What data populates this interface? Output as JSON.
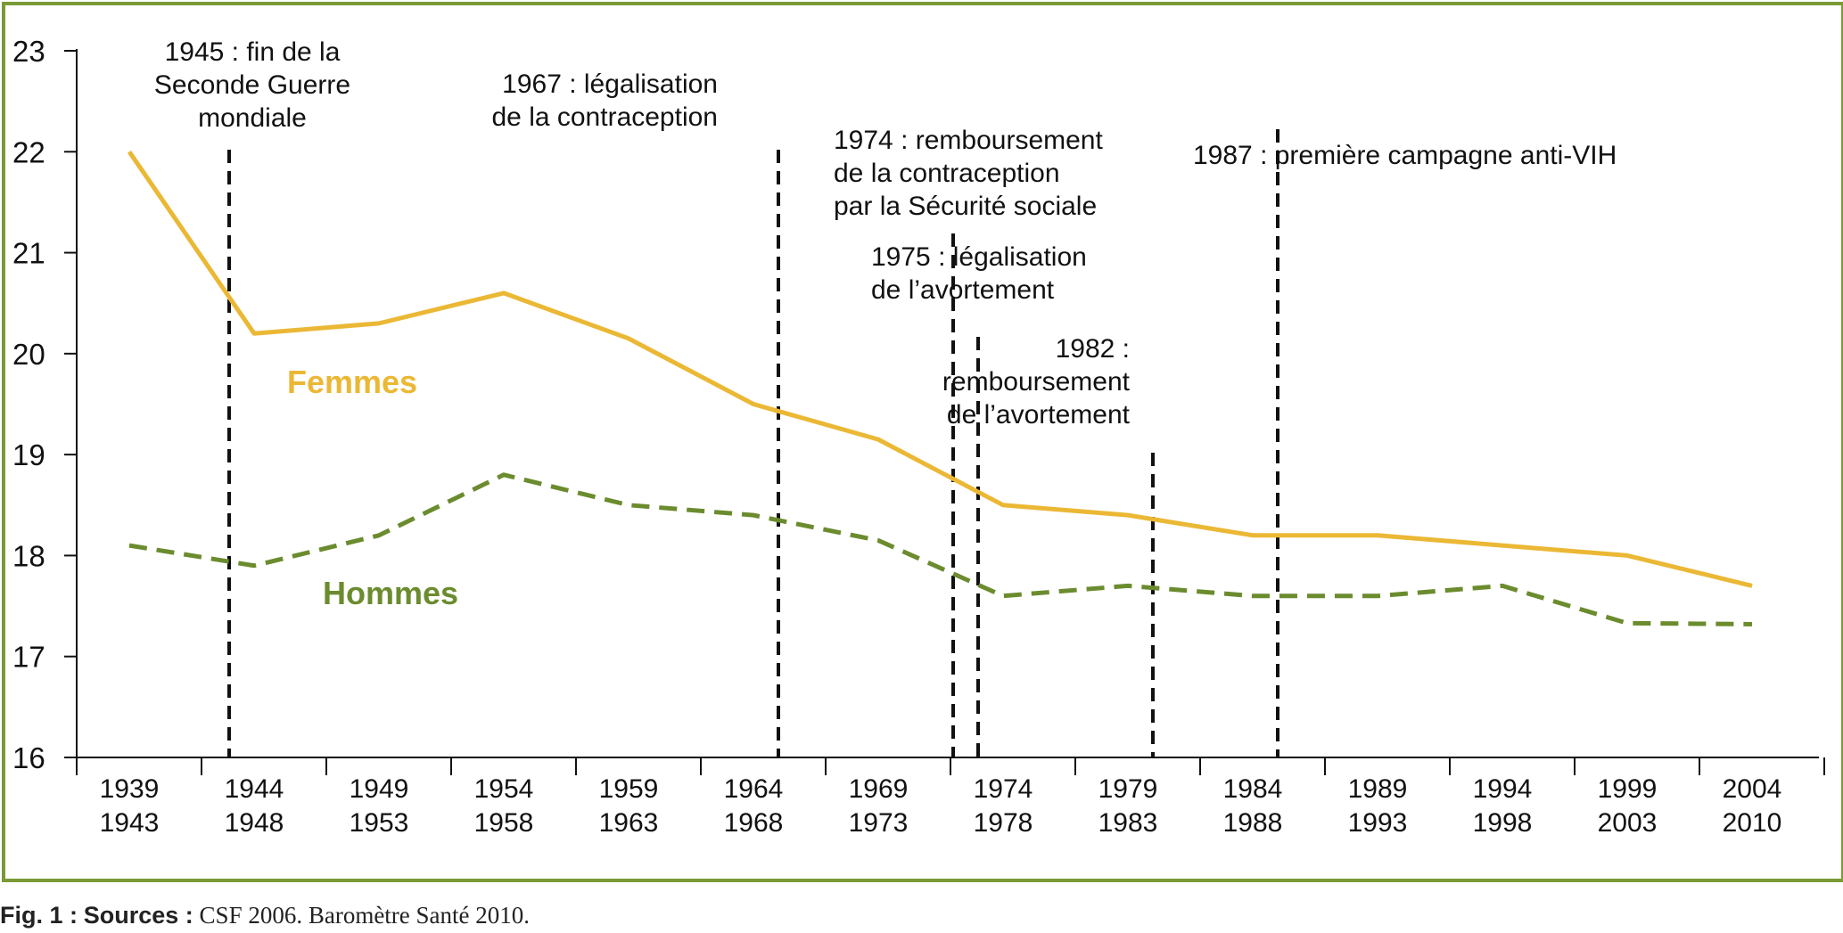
{
  "chart_data": {
    "type": "line",
    "categories": [
      [
        "1939",
        "1943"
      ],
      [
        "1944",
        "1948"
      ],
      [
        "1949",
        "1953"
      ],
      [
        "1954",
        "1958"
      ],
      [
        "1959",
        "1963"
      ],
      [
        "1964",
        "1968"
      ],
      [
        "1969",
        "1973"
      ],
      [
        "1974",
        "1978"
      ],
      [
        "1979",
        "1983"
      ],
      [
        "1984",
        "1988"
      ],
      [
        "1989",
        "1993"
      ],
      [
        "1994",
        "1998"
      ],
      [
        "1999",
        "2003"
      ],
      [
        "2004",
        "2010"
      ]
    ],
    "ylim": [
      16,
      23
    ],
    "yticks": [
      16,
      17,
      18,
      19,
      20,
      21,
      22,
      23
    ],
    "series": [
      {
        "name": "Femmes",
        "color": "#ebb835",
        "style": "solid",
        "values": [
          22.0,
          20.2,
          20.3,
          20.6,
          20.15,
          19.5,
          19.15,
          18.5,
          18.4,
          18.2,
          18.2,
          18.1,
          18.0,
          17.7
        ]
      },
      {
        "name": "Hommes",
        "color": "#6b8c2e",
        "style": "dashed",
        "values": [
          18.1,
          17.9,
          18.2,
          18.8,
          18.5,
          18.4,
          18.15,
          17.6,
          17.7,
          17.6,
          17.6,
          17.7,
          17.33,
          17.32
        ]
      }
    ],
    "events": [
      {
        "year": 1945,
        "lines": [
          "1945 : fin de la",
          "Seconde Guerre",
          "mondiale"
        ]
      },
      {
        "year": 1967,
        "lines": [
          "1967 : légalisation",
          "de la contraception"
        ]
      },
      {
        "year": 1974,
        "lines": [
          "1974 : remboursement",
          "de la contraception",
          "par la Sécurité sociale"
        ]
      },
      {
        "year": 1975,
        "lines": [
          "1975 : légalisation",
          "de l’avortement"
        ]
      },
      {
        "year": 1982,
        "lines": [
          "1982 :",
          "remboursement",
          "de l’avortement"
        ]
      },
      {
        "year": 1987,
        "lines": [
          "1987 : première campagne anti-VIH"
        ]
      }
    ]
  },
  "caption": {
    "fig": "Fig. 1 :",
    "sources_label": "Sources :",
    "text": "CSF 2006. Baromètre Santé 2010."
  }
}
